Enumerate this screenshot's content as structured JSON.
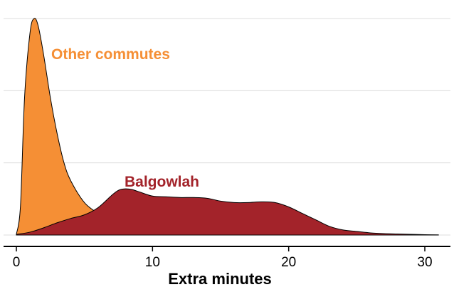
{
  "chart_data": {
    "type": "area",
    "xlabel": "Extra minutes",
    "ylabel": "",
    "xlim": [
      -0.5,
      31
    ],
    "ylim": [
      0,
      0.3
    ],
    "xticks": [
      0,
      10,
      20,
      30
    ],
    "grid": "horizontal",
    "legend": "none",
    "series": [
      {
        "name": "Other commutes",
        "color": "#f58f35",
        "x": [
          0,
          0.3,
          0.6,
          1.0,
          1.3,
          1.6,
          2.0,
          2.5,
          3.0,
          3.5,
          4.0,
          5.0,
          6.0,
          7.0,
          8.0,
          9.0,
          10.0,
          12.0,
          14.0,
          16.0,
          18.0,
          20.0,
          22.0,
          24.0,
          26.0,
          28.0
        ],
        "y": [
          0.001,
          0.04,
          0.19,
          0.28,
          0.3,
          0.29,
          0.25,
          0.19,
          0.14,
          0.1,
          0.075,
          0.045,
          0.03,
          0.018,
          0.009,
          0.005,
          0.003,
          0.0015,
          0.001,
          0.0008,
          0.0006,
          0.0004,
          0.0003,
          0.0002,
          0.0001,
          0.0
        ]
      },
      {
        "name": "Balgowlah",
        "color": "#a3232a",
        "x": [
          0,
          1,
          2,
          3,
          4,
          5,
          6,
          7,
          7.5,
          8,
          8.5,
          9,
          10,
          11,
          12,
          13,
          14,
          15,
          16,
          17,
          18,
          19,
          20,
          21,
          22,
          23,
          24,
          25,
          26,
          27,
          28,
          29,
          30,
          31
        ],
        "y": [
          0.001,
          0.004,
          0.01,
          0.017,
          0.023,
          0.028,
          0.038,
          0.055,
          0.062,
          0.064,
          0.063,
          0.06,
          0.054,
          0.053,
          0.052,
          0.052,
          0.051,
          0.047,
          0.045,
          0.045,
          0.046,
          0.045,
          0.039,
          0.03,
          0.021,
          0.012,
          0.007,
          0.005,
          0.003,
          0.002,
          0.0015,
          0.001,
          0.0005,
          0.0003
        ]
      }
    ],
    "annotations": [
      {
        "series": "Other commutes",
        "text": "Other commutes"
      },
      {
        "series": "Balgowlah",
        "text": "Balgowlah"
      }
    ]
  }
}
